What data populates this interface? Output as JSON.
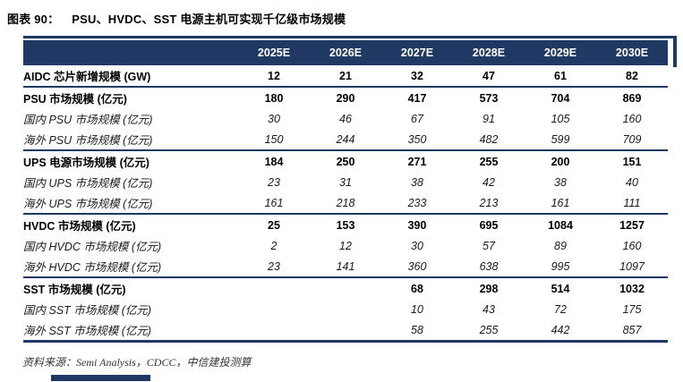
{
  "title": {
    "prefix": "图表 90：",
    "text": "PSU、HVDC、SST 电源主机可实现千亿级市场规模"
  },
  "table": {
    "columns": [
      "2025E",
      "2026E",
      "2027E",
      "2028E",
      "2029E",
      "2030E"
    ],
    "rows": [
      {
        "label": "AIDC 芯片新增规模 (GW)",
        "emphasis": "bold",
        "values": [
          "12",
          "21",
          "32",
          "47",
          "61",
          "82"
        ],
        "section_end": true
      },
      {
        "label": "PSU 市场规模 (亿元)",
        "emphasis": "bold",
        "values": [
          "180",
          "290",
          "417",
          "573",
          "704",
          "869"
        ],
        "section_end": false
      },
      {
        "label": "国内 PSU 市场规模 (亿元)",
        "emphasis": "italic",
        "values": [
          "30",
          "46",
          "67",
          "91",
          "105",
          "160"
        ],
        "section_end": false
      },
      {
        "label": "海外 PSU 市场规模 (亿元)",
        "emphasis": "italic",
        "values": [
          "150",
          "244",
          "350",
          "482",
          "599",
          "709"
        ],
        "section_end": true
      },
      {
        "label": "UPS 电源市场规模 (亿元)",
        "emphasis": "bold",
        "values": [
          "184",
          "250",
          "271",
          "255",
          "200",
          "151"
        ],
        "section_end": false
      },
      {
        "label": "国内 UPS 市场规模 (亿元)",
        "emphasis": "italic",
        "values": [
          "23",
          "31",
          "38",
          "42",
          "38",
          "40"
        ],
        "section_end": false
      },
      {
        "label": "海外 UPS 市场规模 (亿元)",
        "emphasis": "italic",
        "values": [
          "161",
          "218",
          "233",
          "213",
          "161",
          "111"
        ],
        "section_end": true
      },
      {
        "label": "HVDC 市场规模 (亿元)",
        "emphasis": "bold",
        "values": [
          "25",
          "153",
          "390",
          "695",
          "1084",
          "1257"
        ],
        "section_end": false
      },
      {
        "label": "国内 HVDC 市场规模 (亿元)",
        "emphasis": "italic",
        "values": [
          "2",
          "12",
          "30",
          "57",
          "89",
          "160"
        ],
        "section_end": false
      },
      {
        "label": "海外 HVDC 市场规模 (亿元)",
        "emphasis": "italic",
        "values": [
          "23",
          "141",
          "360",
          "638",
          "995",
          "1097"
        ],
        "section_end": true
      },
      {
        "label": "SST 市场规模 (亿元)",
        "emphasis": "bold",
        "values": [
          "",
          "",
          "68",
          "298",
          "514",
          "1032"
        ],
        "section_end": false
      },
      {
        "label": "国内 SST 市场规模 (亿元)",
        "emphasis": "italic",
        "values": [
          "",
          "",
          "10",
          "43",
          "72",
          "175"
        ],
        "section_end": false
      },
      {
        "label": "海外 SST 市场规模 (亿元)",
        "emphasis": "italic",
        "values": [
          "",
          "",
          "58",
          "255",
          "442",
          "857"
        ],
        "section_end": false,
        "table_end": true
      }
    ]
  },
  "source": {
    "text": "资料来源：Semi Analysis，CDCC，中信建投测算"
  },
  "colors": {
    "navy": "#1F3864",
    "header_text": "#FFFFFF",
    "body_text": "#000000",
    "source_text": "#333333",
    "background": "#FFFFFF"
  }
}
